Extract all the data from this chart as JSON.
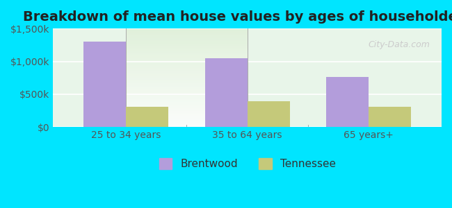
{
  "title": "Breakdown of mean house values by ages of householders",
  "categories": [
    "25 to 34 years",
    "35 to 64 years",
    "65 years+"
  ],
  "brentwood_values": [
    1300000,
    1050000,
    760000
  ],
  "tennessee_values": [
    310000,
    390000,
    305000
  ],
  "bar_color_brentwood": "#b39ddb",
  "bar_color_tennessee": "#c5c97a",
  "ylim": [
    0,
    1500000
  ],
  "yticks": [
    0,
    500000,
    1000000,
    1500000
  ],
  "ytick_labels": [
    "$0",
    "$500k",
    "$1,000k",
    "$1,500k"
  ],
  "legend_labels": [
    "Brentwood",
    "Tennessee"
  ],
  "watermark": "City-Data.com",
  "background_outer": "#00e5ff",
  "background_plot_top": "#f5f5f5",
  "background_plot_bottom": "#e8f5e9",
  "title_fontsize": 14,
  "tick_fontsize": 10,
  "legend_fontsize": 11,
  "bar_width": 0.35
}
